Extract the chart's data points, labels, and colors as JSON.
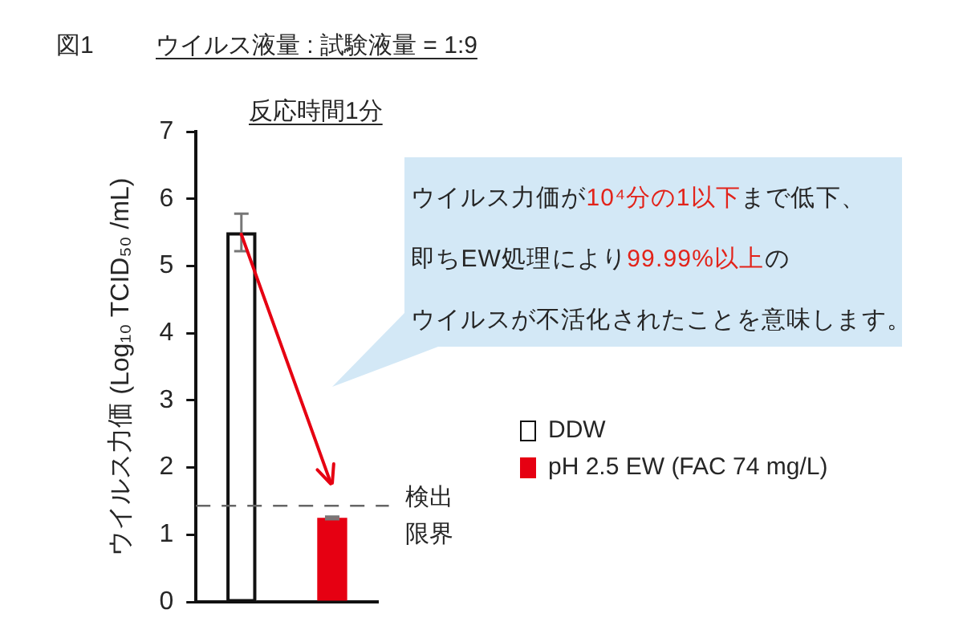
{
  "chart_data": {
    "type": "bar",
    "title": "ウイルス液量 : 試験液量 = 1:9",
    "subtitle": "反応時間1分",
    "ylabel": "ウイルス力価 (Log₁₀ TCID₅₀ /mL)",
    "annotations": [
      "図1",
      "ウイルス力価が",
      "10⁴分の1以下",
      "まで低下、",
      "即ちEW処理により",
      "99.99%以上",
      "の",
      "ウイルスが不活化されたことを意味します。"
    ],
    "categories": [
      null,
      null
    ],
    "series": [
      {
        "name": "DDW",
        "color": "#ffffff",
        "values": [
          5.5,
          null
        ],
        "errors": [
          0.28,
          null
        ]
      },
      {
        "name": "pH 2.5 EW (FAC 74 mg/L)",
        "color": "#e60012",
        "values": [
          null,
          1.25
        ],
        "errors": [
          null,
          0.02
        ]
      }
    ],
    "ylim": [
      0,
      7
    ],
    "yticks": [
      0,
      1,
      2,
      3,
      4,
      5,
      6,
      7
    ],
    "ref_lines": [
      {
        "axis": "y",
        "value": 1.43,
        "label": "検出限界",
        "color": "#666666",
        "line_style": "dashed"
      }
    ],
    "legend": "right"
  }
}
